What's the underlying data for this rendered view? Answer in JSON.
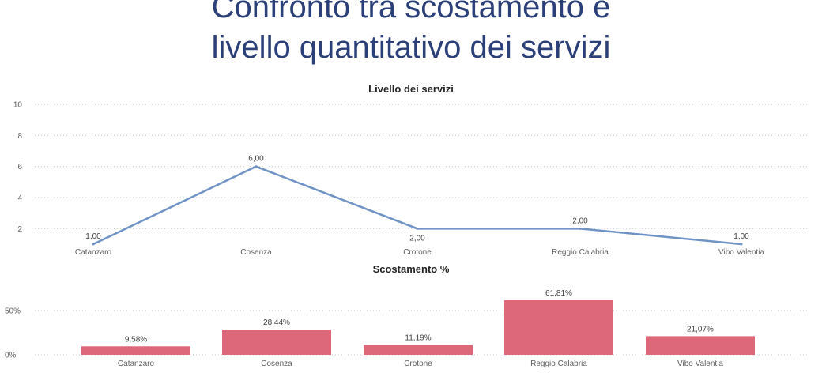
{
  "page": {
    "title_line1": "Confronto tra scostamento e",
    "title_line2": "livello quantitativo dei servizi"
  },
  "colors": {
    "title": "#2b3f78",
    "line": "#6f93c5",
    "bar": "#dc687a"
  },
  "chart_data": [
    {
      "type": "line",
      "title": "Livello dei servizi",
      "categories": [
        "Catanzaro",
        "Cosenza",
        "Crotone",
        "Reggio Calabria",
        "Vibo Valentia"
      ],
      "values": [
        1,
        6,
        2,
        2,
        1
      ],
      "data_labels": [
        "1,00",
        "6,00",
        "2,00",
        "2,00",
        "1,00"
      ],
      "y_ticks": [
        "2",
        "4",
        "6",
        "8",
        "10"
      ],
      "ylim": [
        1,
        10
      ],
      "grid": true
    },
    {
      "type": "bar",
      "title": "Scostamento %",
      "categories": [
        "Catanzaro",
        "Cosenza",
        "Crotone",
        "Reggio Calabria",
        "Vibo Valentia"
      ],
      "values": [
        9.58,
        28.44,
        11.19,
        61.81,
        21.07
      ],
      "data_labels": [
        "9,58%",
        "28,44%",
        "11,19%",
        "61,81%",
        "21,07%"
      ],
      "y_ticks": [
        "0%",
        "50%"
      ],
      "ylim": [
        0,
        65
      ],
      "grid": true
    }
  ]
}
